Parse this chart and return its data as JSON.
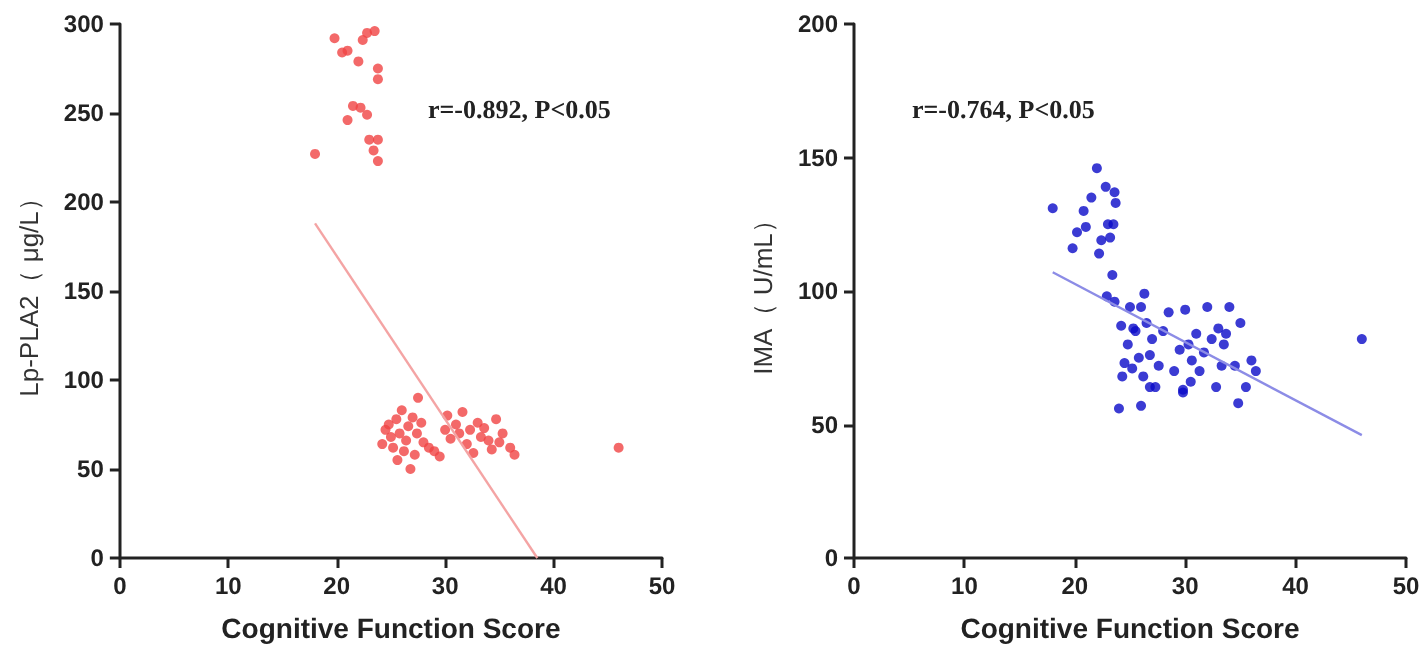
{
  "chart_data": [
    {
      "type": "scatter",
      "xlabel": "Cognitive Function Score",
      "ylabel": "Lp-PLA2（ μg/L）",
      "xlim": [
        0,
        50
      ],
      "xticks": [
        0,
        10,
        20,
        30,
        40,
        50
      ],
      "ylim": [
        0,
        300
      ],
      "yticks": [
        0,
        50,
        100,
        150,
        200,
        250,
        300
      ],
      "grid": false,
      "annotations": [
        "r=-0.892, P<0.05"
      ],
      "series": [
        {
          "marker": "circle",
          "color": "#f04444",
          "x": [
            18,
            19.8,
            20.5,
            21,
            22,
            22.4,
            22.8,
            23.5,
            23.8,
            23.8,
            21.5,
            22.2,
            21,
            22.8,
            23,
            23.8,
            23.4,
            23.8,
            24.2,
            24.5,
            24.8,
            25,
            25.2,
            25.5,
            25.6,
            25.8,
            26,
            26.2,
            26.4,
            26.6,
            26.8,
            27,
            27.2,
            27.4,
            27.5,
            27.8,
            28,
            28.5,
            29,
            29.5,
            30,
            30.2,
            30.5,
            31,
            31.3,
            31.6,
            32,
            32.3,
            32.6,
            33,
            33.3,
            33.6,
            34,
            34.3,
            34.7,
            35,
            35.3,
            36,
            36.4,
            46
          ],
          "values": [
            227,
            292,
            284,
            285,
            279,
            291,
            295,
            296,
            275,
            269,
            254,
            253,
            246,
            249,
            235,
            235,
            229,
            223,
            64,
            72,
            75,
            68,
            62,
            78,
            55,
            70,
            83,
            60,
            66,
            74,
            50,
            79,
            58,
            70,
            90,
            76,
            65,
            62,
            60,
            57,
            72,
            80,
            67,
            75,
            70,
            82,
            64,
            72,
            59,
            76,
            68,
            73,
            66,
            61,
            78,
            65,
            70,
            62,
            58,
            62
          ]
        },
        {
          "type": "line",
          "marker": "none",
          "color": "#f4a4a4",
          "x": [
            18,
            38.5
          ],
          "values": [
            188,
            0
          ]
        }
      ]
    },
    {
      "type": "scatter",
      "xlabel": "Cognitive Function Score",
      "ylabel": "IMA（ U/mL）",
      "xlim": [
        0,
        50
      ],
      "xticks": [
        0,
        10,
        20,
        30,
        40,
        50
      ],
      "ylim": [
        0,
        200
      ],
      "yticks": [
        0,
        50,
        100,
        150,
        200
      ],
      "grid": false,
      "annotations": [
        "r=-0.764, P<0.05"
      ],
      "series": [
        {
          "marker": "circle",
          "color": "#0a0ac8",
          "x": [
            18,
            19.8,
            20.2,
            20.8,
            21,
            21.5,
            22,
            22.2,
            22.4,
            22.8,
            23,
            23.2,
            23.5,
            23.6,
            23.7,
            23.4,
            22.9,
            23.6,
            26.3,
            46,
            24,
            26,
            34.8,
            24.2,
            24.5,
            24.8,
            25,
            25.2,
            25.5,
            25.8,
            26,
            26.2,
            26.5,
            26.8,
            27,
            27.3,
            27.6,
            28,
            28.5,
            29,
            29.5,
            29.8,
            30,
            30.3,
            30.6,
            31,
            31.3,
            31.7,
            32,
            32.4,
            32.8,
            33,
            33.3,
            33.7,
            34,
            34.5,
            35,
            35.5,
            36,
            36.4,
            24.3,
            25.3,
            26.8,
            29.8,
            30.5,
            33.5
          ],
          "values": [
            131,
            116,
            122,
            130,
            124,
            135,
            146,
            114,
            119,
            139,
            125,
            120,
            125,
            137,
            133,
            106,
            98,
            96,
            99,
            82,
            56,
            57,
            58,
            87,
            73,
            80,
            94,
            71,
            85,
            75,
            94,
            68,
            88,
            76,
            82,
            64,
            72,
            85,
            92,
            70,
            78,
            63,
            93,
            80,
            74,
            84,
            70,
            77,
            94,
            82,
            64,
            86,
            72,
            84,
            94,
            72,
            88,
            64,
            74,
            70,
            68,
            86,
            64,
            62,
            66,
            80
          ]
        },
        {
          "type": "line",
          "marker": "none",
          "color": "#8c8ce6",
          "x": [
            18,
            46
          ],
          "values": [
            107,
            46
          ]
        }
      ]
    }
  ]
}
